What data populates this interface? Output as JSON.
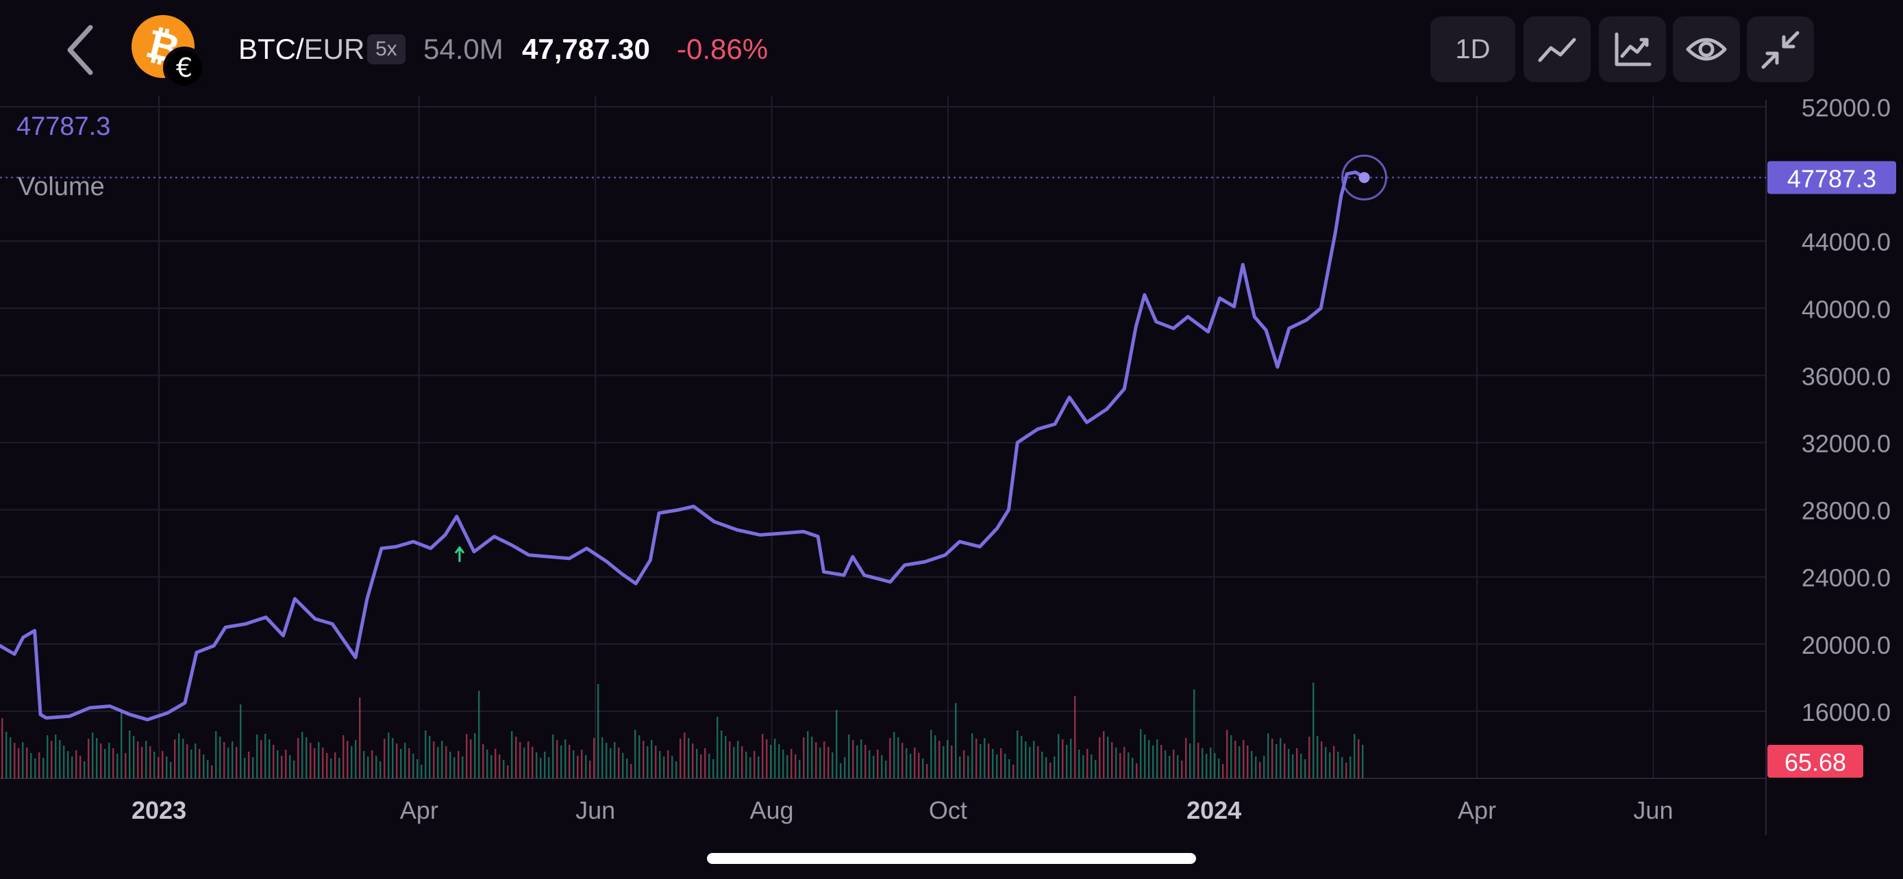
{
  "header": {
    "pair_base": "BTC",
    "pair_sep": "/",
    "pair_quote": "EUR",
    "leverage": "5x",
    "volume": "54.0M",
    "price": "47,787.30",
    "change": "-0.86%",
    "coin_icon": "bitcoin-icon",
    "quote_icon": "euro-icon",
    "coin_color": "#f7931a",
    "change_color": "#f0526b"
  },
  "toolbar": {
    "timeframe": "1D",
    "buttons": [
      "line-chart-icon",
      "indicators-icon",
      "eye-icon",
      "collapse-icon"
    ]
  },
  "legend": {
    "price": "47787.3",
    "volume": "Volume"
  },
  "chart_data": {
    "type": "line",
    "series": [
      {
        "values": [
          {
            "x": "2022-11-07",
            "y": 19900
          },
          {
            "x": "2022-11-12",
            "y": 19400
          },
          {
            "x": "2022-11-15",
            "y": 20400
          },
          {
            "x": "2022-11-19",
            "y": 20800
          },
          {
            "x": "2022-11-21",
            "y": 15800
          },
          {
            "x": "2022-11-23",
            "y": 15600
          },
          {
            "x": "2022-12-01",
            "y": 15700
          },
          {
            "x": "2022-12-08",
            "y": 16200
          },
          {
            "x": "2022-12-15",
            "y": 16300
          },
          {
            "x": "2022-12-22",
            "y": 15800
          },
          {
            "x": "2022-12-28",
            "y": 15500
          },
          {
            "x": "2023-01-04",
            "y": 15900
          },
          {
            "x": "2023-01-10",
            "y": 16500
          },
          {
            "x": "2023-01-14",
            "y": 19500
          },
          {
            "x": "2023-01-20",
            "y": 19900
          },
          {
            "x": "2023-01-24",
            "y": 21000
          },
          {
            "x": "2023-01-31",
            "y": 21200
          },
          {
            "x": "2023-02-07",
            "y": 21600
          },
          {
            "x": "2023-02-13",
            "y": 20500
          },
          {
            "x": "2023-02-17",
            "y": 22700
          },
          {
            "x": "2023-02-24",
            "y": 21500
          },
          {
            "x": "2023-03-02",
            "y": 21200
          },
          {
            "x": "2023-03-10",
            "y": 19200
          },
          {
            "x": "2023-03-14",
            "y": 22700
          },
          {
            "x": "2023-03-19",
            "y": 25700
          },
          {
            "x": "2023-03-24",
            "y": 25800
          },
          {
            "x": "2023-03-30",
            "y": 26100
          },
          {
            "x": "2023-04-05",
            "y": 25700
          },
          {
            "x": "2023-04-10",
            "y": 26500
          },
          {
            "x": "2023-04-14",
            "y": 27600
          },
          {
            "x": "2023-04-20",
            "y": 25500
          },
          {
            "x": "2023-04-27",
            "y": 26400
          },
          {
            "x": "2023-05-03",
            "y": 25900
          },
          {
            "x": "2023-05-09",
            "y": 25300
          },
          {
            "x": "2023-05-16",
            "y": 25200
          },
          {
            "x": "2023-05-23",
            "y": 25100
          },
          {
            "x": "2023-05-29",
            "y": 25700
          },
          {
            "x": "2023-06-05",
            "y": 24900
          },
          {
            "x": "2023-06-10",
            "y": 24200
          },
          {
            "x": "2023-06-15",
            "y": 23600
          },
          {
            "x": "2023-06-20",
            "y": 25000
          },
          {
            "x": "2023-06-23",
            "y": 27800
          },
          {
            "x": "2023-06-30",
            "y": 28000
          },
          {
            "x": "2023-07-05",
            "y": 28200
          },
          {
            "x": "2023-07-12",
            "y": 27300
          },
          {
            "x": "2023-07-20",
            "y": 26800
          },
          {
            "x": "2023-07-28",
            "y": 26500
          },
          {
            "x": "2023-08-05",
            "y": 26600
          },
          {
            "x": "2023-08-12",
            "y": 26700
          },
          {
            "x": "2023-08-17",
            "y": 26400
          },
          {
            "x": "2023-08-19",
            "y": 24300
          },
          {
            "x": "2023-08-26",
            "y": 24100
          },
          {
            "x": "2023-08-29",
            "y": 25200
          },
          {
            "x": "2023-09-02",
            "y": 24100
          },
          {
            "x": "2023-09-11",
            "y": 23700
          },
          {
            "x": "2023-09-16",
            "y": 24700
          },
          {
            "x": "2023-09-23",
            "y": 24900
          },
          {
            "x": "2023-09-30",
            "y": 25300
          },
          {
            "x": "2023-10-05",
            "y": 26100
          },
          {
            "x": "2023-10-12",
            "y": 25800
          },
          {
            "x": "2023-10-18",
            "y": 26900
          },
          {
            "x": "2023-10-22",
            "y": 28000
          },
          {
            "x": "2023-10-25",
            "y": 32000
          },
          {
            "x": "2023-11-01",
            "y": 32800
          },
          {
            "x": "2023-11-07",
            "y": 33100
          },
          {
            "x": "2023-11-12",
            "y": 34700
          },
          {
            "x": "2023-11-18",
            "y": 33200
          },
          {
            "x": "2023-11-25",
            "y": 34000
          },
          {
            "x": "2023-12-01",
            "y": 35200
          },
          {
            "x": "2023-12-05",
            "y": 38900
          },
          {
            "x": "2023-12-08",
            "y": 40800
          },
          {
            "x": "2023-12-12",
            "y": 39200
          },
          {
            "x": "2023-12-18",
            "y": 38800
          },
          {
            "x": "2023-12-23",
            "y": 39500
          },
          {
            "x": "2023-12-30",
            "y": 38600
          },
          {
            "x": "2024-01-03",
            "y": 40600
          },
          {
            "x": "2024-01-08",
            "y": 40100
          },
          {
            "x": "2024-01-11",
            "y": 42600
          },
          {
            "x": "2024-01-15",
            "y": 39500
          },
          {
            "x": "2024-01-19",
            "y": 38700
          },
          {
            "x": "2024-01-23",
            "y": 36500
          },
          {
            "x": "2024-01-27",
            "y": 38800
          },
          {
            "x": "2024-02-02",
            "y": 39300
          },
          {
            "x": "2024-02-07",
            "y": 40000
          },
          {
            "x": "2024-02-12",
            "y": 44500
          },
          {
            "x": "2024-02-14",
            "y": 46700
          },
          {
            "x": "2024-02-16",
            "y": 48000
          },
          {
            "x": "2024-02-19",
            "y": 48100
          },
          {
            "x": "2024-02-22",
            "y": 47787.3
          }
        ]
      }
    ],
    "y_axis": {
      "ticks": [
        16000,
        20000,
        24000,
        28000,
        32000,
        36000,
        40000,
        44000,
        52000
      ],
      "ylim": [
        12000,
        52000
      ],
      "position": "right"
    },
    "x_axis": {
      "ticks": [
        {
          "label": "2023",
          "date": "2023-01-01",
          "bold": true
        },
        {
          "label": "Apr",
          "date": "2023-04-01",
          "bold": false
        },
        {
          "label": "Jun",
          "date": "2023-06-01",
          "bold": false
        },
        {
          "label": "Aug",
          "date": "2023-08-01",
          "bold": false
        },
        {
          "label": "Oct",
          "date": "2023-10-01",
          "bold": false
        },
        {
          "label": "2024",
          "date": "2024-01-01",
          "bold": true
        },
        {
          "label": "Apr",
          "date": "2024-04-01",
          "bold": false
        },
        {
          "label": "Jun",
          "date": "2024-06-01",
          "bold": false
        }
      ],
      "xlim": [
        "2022-11-07",
        "2024-07-10"
      ]
    },
    "last_price_label": "47787.3",
    "last_volume_label": "65.68",
    "grid": true,
    "line_color": "#7b6ee0",
    "volume_up_color": "#1f9d7a",
    "volume_down_color": "#d9455f",
    "volume_label_color": "#f0415f",
    "annotation_arrow": "up-arrow-icon"
  }
}
